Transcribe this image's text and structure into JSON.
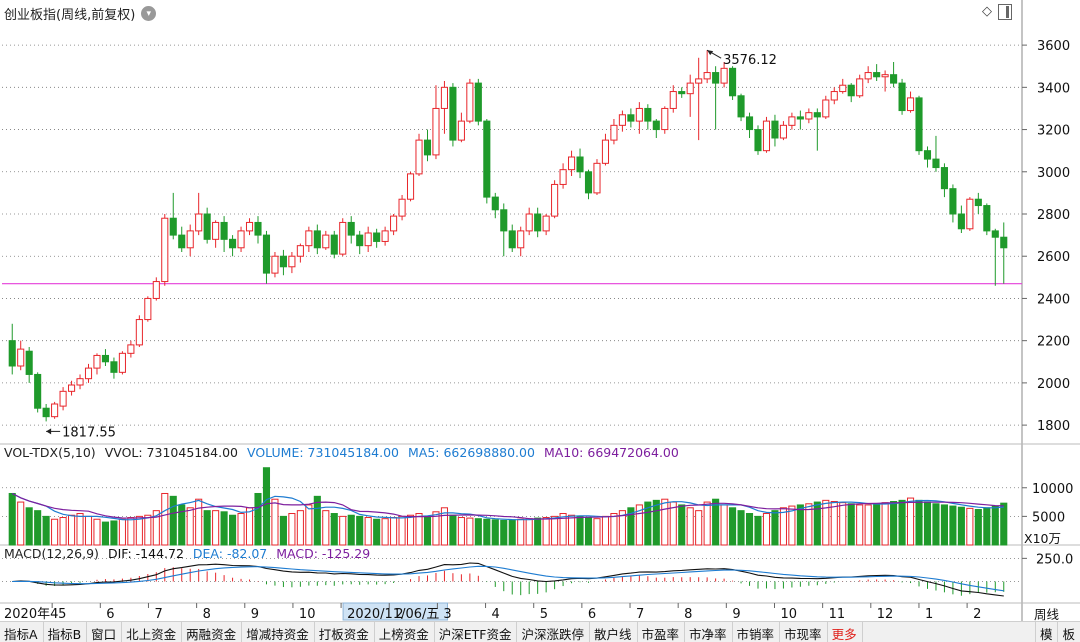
{
  "header": {
    "title": "创业板指(周线,前复权)",
    "toggle_icon": "chevron-down-icon"
  },
  "toolbar_icons": [
    "diamond-icon",
    "scroll-box-icon"
  ],
  "chart_data": {
    "type": "candlestick",
    "price_axis": {
      "ticks": [
        3600,
        3400,
        3200,
        3000,
        2800,
        2600,
        2400,
        2200,
        2000,
        1800
      ],
      "ylim": [
        1720,
        3700
      ]
    },
    "support_line": {
      "value": 2470,
      "color": "#e53fd9"
    },
    "annotations": [
      {
        "label": "1817.55",
        "value": 1817.55
      },
      {
        "label": "3576.12",
        "value": 3576.12
      }
    ],
    "candles": [
      [
        2200,
        2080,
        2280,
        2040
      ],
      [
        2080,
        2160,
        2200,
        2060
      ],
      [
        2150,
        2040,
        2170,
        2000
      ],
      [
        2040,
        1880,
        2050,
        1860
      ],
      [
        1880,
        1840,
        1900,
        1817.55
      ],
      [
        1840,
        1900,
        1910,
        1830
      ],
      [
        1890,
        1960,
        1980,
        1870
      ],
      [
        1960,
        1990,
        2010,
        1940
      ],
      [
        1990,
        2020,
        2040,
        1970
      ],
      [
        2020,
        2070,
        2090,
        2000
      ],
      [
        2070,
        2130,
        2140,
        2040
      ],
      [
        2130,
        2100,
        2160,
        2080
      ],
      [
        2100,
        2050,
        2120,
        2020
      ],
      [
        2050,
        2140,
        2150,
        2040
      ],
      [
        2140,
        2180,
        2200,
        2120
      ],
      [
        2180,
        2300,
        2320,
        2170
      ],
      [
        2300,
        2400,
        2410,
        2290
      ],
      [
        2400,
        2480,
        2500,
        2390
      ],
      [
        2480,
        2780,
        2800,
        2460
      ],
      [
        2780,
        2700,
        2900,
        2680
      ],
      [
        2700,
        2640,
        2740,
        2620
      ],
      [
        2640,
        2720,
        2750,
        2600
      ],
      [
        2720,
        2800,
        2900,
        2700
      ],
      [
        2800,
        2680,
        2830,
        2660
      ],
      [
        2680,
        2760,
        2770,
        2640
      ],
      [
        2760,
        2680,
        2790,
        2620
      ],
      [
        2680,
        2640,
        2700,
        2600
      ],
      [
        2640,
        2720,
        2740,
        2620
      ],
      [
        2720,
        2760,
        2780,
        2700
      ],
      [
        2760,
        2700,
        2790,
        2660
      ],
      [
        2700,
        2520,
        2720,
        2470
      ],
      [
        2520,
        2600,
        2620,
        2500
      ],
      [
        2600,
        2550,
        2630,
        2510
      ],
      [
        2550,
        2600,
        2620,
        2520
      ],
      [
        2600,
        2650,
        2660,
        2570
      ],
      [
        2650,
        2720,
        2740,
        2620
      ],
      [
        2720,
        2640,
        2750,
        2610
      ],
      [
        2640,
        2700,
        2720,
        2630
      ],
      [
        2700,
        2610,
        2720,
        2590
      ],
      [
        2610,
        2760,
        2780,
        2600
      ],
      [
        2760,
        2700,
        2790,
        2660
      ],
      [
        2700,
        2650,
        2720,
        2610
      ],
      [
        2650,
        2710,
        2740,
        2620
      ],
      [
        2710,
        2670,
        2730,
        2640
      ],
      [
        2670,
        2720,
        2740,
        2650
      ],
      [
        2720,
        2790,
        2800,
        2700
      ],
      [
        2790,
        2870,
        2890,
        2770
      ],
      [
        2870,
        2990,
        3000,
        2860
      ],
      [
        2990,
        3150,
        3180,
        2980
      ],
      [
        3150,
        3080,
        3200,
        3050
      ],
      [
        3080,
        3300,
        3410,
        3060
      ],
      [
        3300,
        3400,
        3430,
        3180
      ],
      [
        3400,
        3150,
        3420,
        3120
      ],
      [
        3150,
        3240,
        3280,
        3140
      ],
      [
        3240,
        3420,
        3440,
        3230
      ],
      [
        3420,
        3240,
        3440,
        3220
      ],
      [
        3240,
        2880,
        3250,
        2850
      ],
      [
        2880,
        2820,
        2900,
        2780
      ],
      [
        2820,
        2720,
        2850,
        2600
      ],
      [
        2720,
        2640,
        2750,
        2620
      ],
      [
        2640,
        2720,
        2740,
        2600
      ],
      [
        2720,
        2800,
        2830,
        2700
      ],
      [
        2800,
        2720,
        2830,
        2690
      ],
      [
        2720,
        2790,
        2800,
        2700
      ],
      [
        2790,
        2940,
        2960,
        2780
      ],
      [
        2940,
        3010,
        3040,
        2920
      ],
      [
        3010,
        3070,
        3100,
        2980
      ],
      [
        3070,
        3000,
        3110,
        2970
      ],
      [
        3000,
        2900,
        3010,
        2870
      ],
      [
        2900,
        3040,
        3060,
        2890
      ],
      [
        3040,
        3150,
        3180,
        3030
      ],
      [
        3150,
        3220,
        3250,
        3130
      ],
      [
        3220,
        3270,
        3290,
        3190
      ],
      [
        3270,
        3240,
        3300,
        3210
      ],
      [
        3240,
        3300,
        3330,
        3180
      ],
      [
        3300,
        3240,
        3320,
        3200
      ],
      [
        3240,
        3200,
        3250,
        3160
      ],
      [
        3200,
        3300,
        3310,
        3180
      ],
      [
        3300,
        3380,
        3410,
        3280
      ],
      [
        3380,
        3370,
        3400,
        3350
      ],
      [
        3370,
        3420,
        3460,
        3260
      ],
      [
        3420,
        3440,
        3540,
        3150
      ],
      [
        3440,
        3470,
        3576.12,
        3420
      ],
      [
        3470,
        3420,
        3500,
        3200
      ],
      [
        3420,
        3490,
        3520,
        3400
      ],
      [
        3490,
        3360,
        3500,
        3340
      ],
      [
        3360,
        3260,
        3370,
        3240
      ],
      [
        3260,
        3200,
        3280,
        3160
      ],
      [
        3200,
        3100,
        3220,
        3080
      ],
      [
        3100,
        3240,
        3260,
        3090
      ],
      [
        3240,
        3160,
        3270,
        3120
      ],
      [
        3160,
        3220,
        3240,
        3150
      ],
      [
        3220,
        3260,
        3280,
        3200
      ],
      [
        3260,
        3250,
        3290,
        3200
      ],
      [
        3250,
        3280,
        3300,
        3230
      ],
      [
        3280,
        3260,
        3300,
        3100
      ],
      [
        3260,
        3340,
        3360,
        3250
      ],
      [
        3340,
        3380,
        3400,
        3320
      ],
      [
        3380,
        3410,
        3440,
        3370
      ],
      [
        3410,
        3360,
        3420,
        3330
      ],
      [
        3360,
        3440,
        3460,
        3350
      ],
      [
        3440,
        3470,
        3500,
        3420
      ],
      [
        3470,
        3450,
        3510,
        3430
      ],
      [
        3450,
        3460,
        3480,
        3380
      ],
      [
        3460,
        3420,
        3520,
        3400
      ],
      [
        3420,
        3290,
        3440,
        3270
      ],
      [
        3290,
        3350,
        3380,
        3280
      ],
      [
        3350,
        3100,
        3360,
        3080
      ],
      [
        3100,
        3060,
        3120,
        3020
      ],
      [
        3060,
        3020,
        3170,
        3000
      ],
      [
        3020,
        2920,
        3040,
        2880
      ],
      [
        2920,
        2800,
        2940,
        2760
      ],
      [
        2800,
        2730,
        2840,
        2710
      ],
      [
        2730,
        2870,
        2880,
        2720
      ],
      [
        2870,
        2840,
        2900,
        2800
      ],
      [
        2840,
        2720,
        2850,
        2700
      ],
      [
        2720,
        2690,
        2730,
        2460
      ],
      [
        2690,
        2640,
        2760,
        2470
      ]
    ],
    "volume": {
      "title": "VOL-TDX(5,10)",
      "vvol_label": "VVOL: 731045184.00",
      "volume_label": "VOLUME: 731045184.00",
      "ma5_label": "MA5: 662698880.00",
      "ma10_label": "MA10: 669472064.00",
      "ticks": [
        10000,
        5000
      ],
      "unit": "X10万",
      "ylim": [
        0,
        14500
      ],
      "values": [
        9000,
        7500,
        6500,
        6000,
        5000,
        4500,
        4800,
        5200,
        5500,
        5000,
        4500,
        4000,
        4200,
        4500,
        4800,
        5000,
        5200,
        6000,
        9000,
        8500,
        7000,
        6500,
        8000,
        6000,
        6000,
        5800,
        5200,
        5500,
        6500,
        9000,
        13500,
        8000,
        5000,
        5500,
        6000,
        7000,
        8500,
        6000,
        5500,
        5000,
        5200,
        5000,
        4800,
        4500,
        4600,
        4800,
        5000,
        5200,
        5500,
        5000,
        5800,
        6500,
        5200,
        4800,
        4700,
        4600,
        4500,
        4400,
        4300,
        4400,
        4500,
        4600,
        4700,
        4800,
        5000,
        5500,
        5200,
        5000,
        4800,
        4600,
        5000,
        5500,
        6000,
        6500,
        7000,
        7500,
        7800,
        8000,
        7500,
        7000,
        6500,
        6000,
        7500,
        8000,
        7000,
        6500,
        6000,
        5500,
        5000,
        5500,
        6000,
        6500,
        6800,
        7000,
        7200,
        7500,
        7800,
        7600,
        7400,
        7200,
        7000,
        7000,
        7200,
        7400,
        7600,
        7800,
        8200,
        7800,
        7500,
        7200,
        7000,
        6800,
        6600,
        6400,
        6200,
        6500,
        6800,
        7310
      ]
    },
    "macd": {
      "title": "MACD(12,26,9)",
      "dif_label": "DIF: -144.72",
      "dea_label": "DEA: -82.07",
      "macd_label": "MACD: -125.29",
      "tick": 250.0,
      "tick_label": "250.0"
    },
    "x_axis": {
      "labels": [
        "2020年4",
        "5",
        "6",
        "7",
        "8",
        "9",
        "10",
        "2020/11/06/五",
        "2",
        "3",
        "4",
        "5",
        "6",
        "7",
        "8",
        "9",
        "10",
        "11",
        "12",
        "1",
        "2"
      ],
      "period": "周线"
    }
  },
  "bottom_tabs": [
    "指标A",
    "指标B",
    "窗口",
    "北上资金",
    "两融资金",
    "增减持资金",
    "打板资金",
    "上榜资金",
    "沪深ETF资金",
    "沪深涨跌停",
    "散户线",
    "市盈率",
    "市净率",
    "市销率",
    "市现率",
    "更多"
  ],
  "bottom_tabs_red_index": 15,
  "bottom_right": [
    "模",
    "板"
  ],
  "colors": {
    "up": "#e8262b",
    "down": "#1f9a2b",
    "grid": "#777777",
    "ma5": "#1e7cd1",
    "ma10": "#7d1f9e",
    "highlight": "#cfe3f5"
  }
}
